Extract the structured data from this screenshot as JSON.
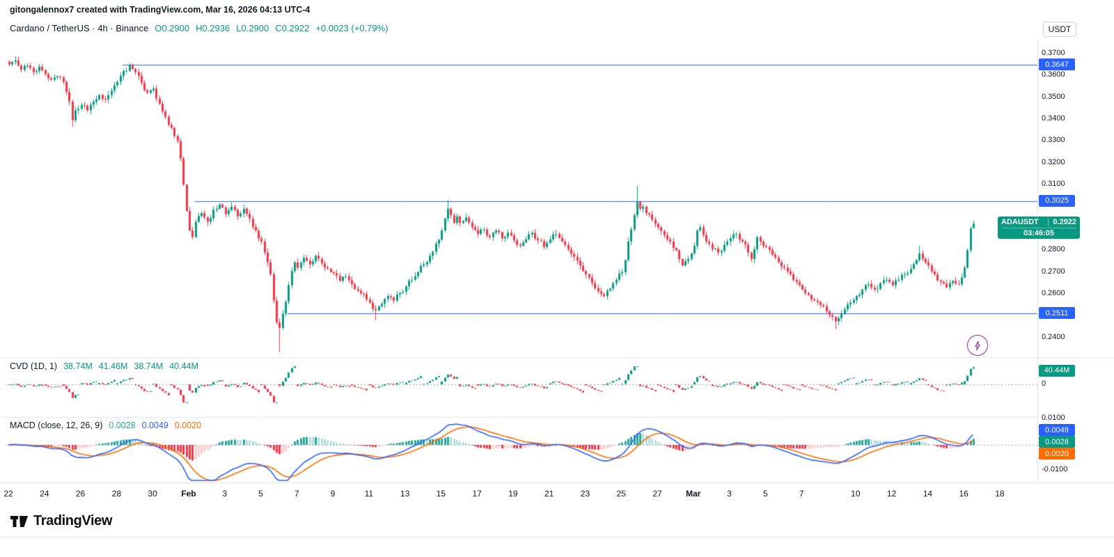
{
  "attribution": "gitongalennox7 created with TradingView.com, Mar 16, 2026 04:13 UTC-4",
  "symbol": {
    "title": "Cardano / TetherUS · 4h · Binance",
    "ohlc": {
      "open": "O0.2900",
      "high": "H0.2936",
      "low": "L0.2900",
      "close": "C0.2922",
      "change": "+0.0023 (+0.79%)"
    }
  },
  "price_axis": {
    "currency": "USDT",
    "ticks": [
      {
        "label": "0.3700",
        "value": 0.37
      },
      {
        "label": "0.3600",
        "value": 0.36
      },
      {
        "label": "0.3500",
        "value": 0.35
      },
      {
        "label": "0.3400",
        "value": 0.34
      },
      {
        "label": "0.3300",
        "value": 0.33
      },
      {
        "label": "0.3200",
        "value": 0.32
      },
      {
        "label": "0.3100",
        "value": 0.31
      },
      {
        "label": "0.2800",
        "value": 0.28
      },
      {
        "label": "0.2700",
        "value": 0.27
      },
      {
        "label": "0.2600",
        "value": 0.26
      },
      {
        "label": "0.2400",
        "value": 0.24
      }
    ]
  },
  "last_price": {
    "symbol": "ADAUSDT",
    "price": "0.2922",
    "value": 0.2922,
    "countdown": "03:46:05"
  },
  "cvd": {
    "legend": "CVD (1D, 1)",
    "values": [
      "38.74M",
      "41.46M",
      "38.74M",
      "40.44M"
    ],
    "badge": "40.44M",
    "badge_value": 40.44,
    "axis_zero": "0"
  },
  "macd": {
    "legend": "MACD (close, 12, 26, 9)",
    "hist": "0.0028",
    "macd": "0.0049",
    "signal": "0.0020",
    "axis_top": "0.0100",
    "axis_bottom": "-0.0100"
  },
  "x_axis": {
    "ticks": [
      {
        "label": "22",
        "idx": 0
      },
      {
        "label": "24",
        "idx": 12
      },
      {
        "label": "26",
        "idx": 24
      },
      {
        "label": "28",
        "idx": 36
      },
      {
        "label": "30",
        "idx": 48
      },
      {
        "label": "Feb",
        "idx": 60,
        "major": true
      },
      {
        "label": "3",
        "idx": 72
      },
      {
        "label": "5",
        "idx": 84
      },
      {
        "label": "7",
        "idx": 96
      },
      {
        "label": "9",
        "idx": 108
      },
      {
        "label": "11",
        "idx": 120
      },
      {
        "label": "13",
        "idx": 132
      },
      {
        "label": "15",
        "idx": 144
      },
      {
        "label": "17",
        "idx": 156
      },
      {
        "label": "19",
        "idx": 168
      },
      {
        "label": "21",
        "idx": 180
      },
      {
        "label": "23",
        "idx": 192
      },
      {
        "label": "25",
        "idx": 204
      },
      {
        "label": "27",
        "idx": 216
      },
      {
        "label": "Mar",
        "idx": 228,
        "major": true
      },
      {
        "label": "3",
        "idx": 240
      },
      {
        "label": "5",
        "idx": 252
      },
      {
        "label": "7",
        "idx": 264
      },
      {
        "label": "10",
        "idx": 282
      },
      {
        "label": "12",
        "idx": 294
      },
      {
        "label": "14",
        "idx": 306
      },
      {
        "label": "16",
        "idx": 318
      },
      {
        "label": "18",
        "idx": 330
      }
    ]
  },
  "footer": {
    "brand": "TradingView"
  },
  "colors": {
    "up": "#089981",
    "down": "#f23645",
    "accent_blue": "#2962ff",
    "orange": "#ff6d00",
    "hist_pos": "#26a69a",
    "hist_pos_weak": "#b2dfdb",
    "hist_neg": "#f23645",
    "hist_neg_weak": "#fccbcd",
    "badge_green": "#089981",
    "purple": "#9c27b0",
    "separator": "#e0e3eb",
    "dashed": "#9aa0a6"
  },
  "chart_data": [
    {
      "type": "candlestick",
      "symbol": "ADAUSDT",
      "timeframe": "4h",
      "exchange": "Binance",
      "candle_count": 322,
      "x_domain": [
        0,
        340
      ],
      "y_axis": {
        "min": 0.2314,
        "max": 0.376
      },
      "last_candle": {
        "open": 0.29,
        "high": 0.2936,
        "low": 0.29,
        "close": 0.2922
      },
      "levels": [
        {
          "label": "0.3647",
          "value": 0.3647,
          "start_idx": 38
        },
        {
          "label": "0.3025",
          "value": 0.3025,
          "start_idx": 62
        },
        {
          "label": "0.2511",
          "value": 0.2511,
          "start_idx": 93
        }
      ],
      "price_anchors": [
        [
          0,
          0.365
        ],
        [
          2,
          0.3668
        ],
        [
          4,
          0.3625
        ],
        [
          6,
          0.3645
        ],
        [
          8,
          0.3615
        ],
        [
          10,
          0.364
        ],
        [
          12,
          0.3605
        ],
        [
          14,
          0.358
        ],
        [
          16,
          0.3595
        ],
        [
          18,
          0.357
        ],
        [
          20,
          0.348
        ],
        [
          21,
          0.3395
        ],
        [
          22,
          0.344
        ],
        [
          24,
          0.3465
        ],
        [
          26,
          0.344
        ],
        [
          28,
          0.348
        ],
        [
          30,
          0.351
        ],
        [
          32,
          0.349
        ],
        [
          34,
          0.353
        ],
        [
          36,
          0.357
        ],
        [
          38,
          0.362
        ],
        [
          40,
          0.3645
        ],
        [
          42,
          0.3615
        ],
        [
          44,
          0.3565
        ],
        [
          46,
          0.352
        ],
        [
          48,
          0.354
        ],
        [
          50,
          0.347
        ],
        [
          52,
          0.341
        ],
        [
          54,
          0.336
        ],
        [
          56,
          0.33
        ],
        [
          57,
          0.322
        ],
        [
          58,
          0.31
        ],
        [
          59,
          0.298
        ],
        [
          60,
          0.289
        ],
        [
          61,
          0.286
        ],
        [
          62,
          0.293
        ],
        [
          64,
          0.297
        ],
        [
          66,
          0.293
        ],
        [
          68,
          0.2985
        ],
        [
          70,
          0.301
        ],
        [
          72,
          0.2965
        ],
        [
          74,
          0.3
        ],
        [
          76,
          0.2955
        ],
        [
          78,
          0.299
        ],
        [
          80,
          0.2945
        ],
        [
          82,
          0.289
        ],
        [
          84,
          0.284
        ],
        [
          85,
          0.279
        ],
        [
          86,
          0.2745
        ],
        [
          87,
          0.269
        ],
        [
          88,
          0.257
        ],
        [
          89,
          0.247
        ],
        [
          90,
          0.2445
        ],
        [
          91,
          0.251
        ],
        [
          92,
          0.2565
        ],
        [
          93,
          0.264
        ],
        [
          94,
          0.2705
        ],
        [
          95,
          0.2745
        ],
        [
          96,
          0.272
        ],
        [
          98,
          0.2765
        ],
        [
          100,
          0.2735
        ],
        [
          102,
          0.2775
        ],
        [
          104,
          0.274
        ],
        [
          106,
          0.2715
        ],
        [
          108,
          0.2695
        ],
        [
          110,
          0.266
        ],
        [
          112,
          0.268
        ],
        [
          114,
          0.2645
        ],
        [
          116,
          0.2615
        ],
        [
          118,
          0.26
        ],
        [
          120,
          0.256
        ],
        [
          122,
          0.2525
        ],
        [
          124,
          0.2555
        ],
        [
          126,
          0.259
        ],
        [
          128,
          0.257
        ],
        [
          130,
          0.2605
        ],
        [
          132,
          0.2635
        ],
        [
          134,
          0.2665
        ],
        [
          136,
          0.27
        ],
        [
          138,
          0.2735
        ],
        [
          140,
          0.2775
        ],
        [
          142,
          0.283
        ],
        [
          144,
          0.289
        ],
        [
          145,
          0.2945
        ],
        [
          146,
          0.299
        ],
        [
          147,
          0.296
        ],
        [
          148,
          0.2925
        ],
        [
          149,
          0.2955
        ],
        [
          150,
          0.2925
        ],
        [
          152,
          0.295
        ],
        [
          154,
          0.2905
        ],
        [
          156,
          0.2875
        ],
        [
          158,
          0.2895
        ],
        [
          160,
          0.286
        ],
        [
          162,
          0.289
        ],
        [
          164,
          0.2855
        ],
        [
          166,
          0.288
        ],
        [
          168,
          0.2845
        ],
        [
          170,
          0.282
        ],
        [
          172,
          0.285
        ],
        [
          174,
          0.288
        ],
        [
          176,
          0.2845
        ],
        [
          178,
          0.2815
        ],
        [
          180,
          0.285
        ],
        [
          182,
          0.2875
        ],
        [
          184,
          0.284
        ],
        [
          186,
          0.2805
        ],
        [
          188,
          0.277
        ],
        [
          190,
          0.273
        ],
        [
          192,
          0.269
        ],
        [
          194,
          0.265
        ],
        [
          196,
          0.2612
        ],
        [
          198,
          0.259
        ],
        [
          200,
          0.2625
        ],
        [
          202,
          0.2665
        ],
        [
          204,
          0.27
        ],
        [
          205,
          0.2755
        ],
        [
          206,
          0.284
        ],
        [
          207,
          0.2895
        ],
        [
          208,
          0.296
        ],
        [
          209,
          0.302
        ],
        [
          210,
          0.299
        ],
        [
          211,
          0.3
        ],
        [
          212,
          0.297
        ],
        [
          214,
          0.294
        ],
        [
          216,
          0.2905
        ],
        [
          218,
          0.287
        ],
        [
          220,
          0.284
        ],
        [
          222,
          0.28
        ],
        [
          223,
          0.276
        ],
        [
          224,
          0.273
        ],
        [
          226,
          0.276
        ],
        [
          228,
          0.282
        ],
        [
          229,
          0.289
        ],
        [
          230,
          0.2905
        ],
        [
          231,
          0.287
        ],
        [
          232,
          0.284
        ],
        [
          234,
          0.2805
        ],
        [
          236,
          0.279
        ],
        [
          238,
          0.2825
        ],
        [
          240,
          0.2855
        ],
        [
          242,
          0.2875
        ],
        [
          244,
          0.284
        ],
        [
          246,
          0.279
        ],
        [
          247,
          0.276
        ],
        [
          248,
          0.2805
        ],
        [
          249,
          0.286
        ],
        [
          250,
          0.284
        ],
        [
          252,
          0.2815
        ],
        [
          254,
          0.278
        ],
        [
          256,
          0.2745
        ],
        [
          258,
          0.272
        ],
        [
          260,
          0.269
        ],
        [
          262,
          0.2655
        ],
        [
          264,
          0.262
        ],
        [
          266,
          0.2595
        ],
        [
          268,
          0.257
        ],
        [
          270,
          0.255
        ],
        [
          272,
          0.252
        ],
        [
          274,
          0.2495
        ],
        [
          275,
          0.2475
        ],
        [
          276,
          0.249
        ],
        [
          277,
          0.251
        ],
        [
          278,
          0.253
        ],
        [
          280,
          0.256
        ],
        [
          282,
          0.259
        ],
        [
          284,
          0.262
        ],
        [
          286,
          0.2645
        ],
        [
          288,
          0.262
        ],
        [
          290,
          0.265
        ],
        [
          292,
          0.2665
        ],
        [
          294,
          0.264
        ],
        [
          296,
          0.2665
        ],
        [
          298,
          0.269
        ],
        [
          300,
          0.2715
        ],
        [
          302,
          0.2755
        ],
        [
          303,
          0.2785
        ],
        [
          304,
          0.276
        ],
        [
          306,
          0.273
        ],
        [
          308,
          0.269
        ],
        [
          310,
          0.2655
        ],
        [
          312,
          0.263
        ],
        [
          314,
          0.266
        ],
        [
          316,
          0.2645
        ],
        [
          317,
          0.2675
        ],
        [
          318,
          0.272
        ],
        [
          319,
          0.28
        ],
        [
          320,
          0.29
        ],
        [
          321,
          0.2922
        ]
      ],
      "wick_overrides": {
        "21": {
          "low": 0.3365
        },
        "40": {
          "high": 0.3655
        },
        "90": {
          "low": 0.2335
        },
        "122": {
          "low": 0.248
        },
        "146": {
          "high": 0.303
        },
        "209": {
          "high": 0.3095
        },
        "275": {
          "low": 0.244
        },
        "303": {
          "high": 0.282
        },
        "321": {
          "high": 0.2936,
          "low": 0.29
        }
      }
    },
    {
      "type": "bar",
      "name": "CVD (1D, 1)",
      "anchor": "daily-reset",
      "legend_values": [
        "38.74M",
        "41.46M",
        "38.74M",
        "40.44M"
      ],
      "last_value": "40.44M",
      "delta_scale": 2000,
      "clamp_m": 52,
      "y_unit": "M"
    },
    {
      "type": "macd",
      "name": "MACD (close, 12, 26, 9)",
      "fast": 12,
      "slow": 26,
      "signal_len": 9,
      "last": {
        "macd": 0.0049,
        "signal": 0.002,
        "histogram": 0.0028
      },
      "y_ticks": [
        0.01,
        -0.01
      ]
    }
  ]
}
